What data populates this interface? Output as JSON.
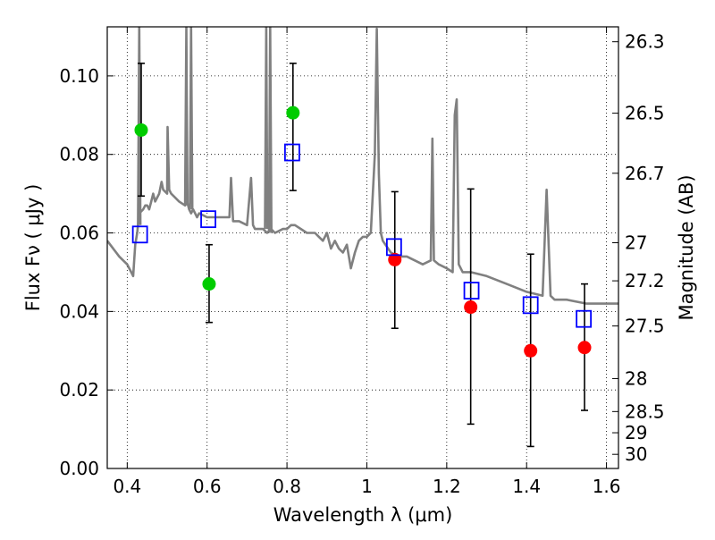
{
  "chart_data": {
    "type": "scatter",
    "xlabel": "Wavelength  λ (μm)",
    "ylabel": "Flux  Fν  ( μJy )",
    "ylabel_right": "Magnitude (AB)",
    "xlim": [
      0.35,
      1.63
    ],
    "ylim": [
      0.0,
      0.1125
    ],
    "grid": true,
    "x_ticks": [
      {
        "value": 0.4,
        "label": "0.4"
      },
      {
        "value": 0.6,
        "label": "0.6"
      },
      {
        "value": 0.8,
        "label": "0.8"
      },
      {
        "value": 1.0,
        "label": "1"
      },
      {
        "value": 1.2,
        "label": "1.2"
      },
      {
        "value": 1.4,
        "label": "1.4"
      },
      {
        "value": 1.6,
        "label": "1.6"
      }
    ],
    "y_ticks": [
      {
        "value": 0.0,
        "label": "0.00"
      },
      {
        "value": 0.02,
        "label": "0.02"
      },
      {
        "value": 0.04,
        "label": "0.04"
      },
      {
        "value": 0.06,
        "label": "0.06"
      },
      {
        "value": 0.08,
        "label": "0.08"
      },
      {
        "value": 0.1,
        "label": "0.10"
      }
    ],
    "right_ticks": [
      {
        "flux": 0.1087,
        "label": "26.3"
      },
      {
        "flux": 0.0905,
        "label": "26.5"
      },
      {
        "flux": 0.0752,
        "label": "26.7"
      },
      {
        "flux": 0.0575,
        "label": "27"
      },
      {
        "flux": 0.0478,
        "label": "27.2"
      },
      {
        "flux": 0.0363,
        "label": "27.5"
      },
      {
        "flux": 0.0229,
        "label": "28"
      },
      {
        "flux": 0.0145,
        "label": "28.5"
      },
      {
        "flux": 0.0091,
        "label": "29"
      },
      {
        "flux": 0.0036,
        "label": "30"
      }
    ],
    "series": [
      {
        "name": "model SED",
        "style": "line",
        "color": "#808080",
        "x": [
          0.35,
          0.38,
          0.4,
          0.41,
          0.415,
          0.42,
          0.425,
          0.43,
          0.44,
          0.445,
          0.45,
          0.455,
          0.46,
          0.465,
          0.47,
          0.48,
          0.486,
          0.49,
          0.5,
          0.501,
          0.505,
          0.51,
          0.53,
          0.545,
          0.55,
          0.555,
          0.56,
          0.565,
          0.57,
          0.575,
          0.58,
          0.6,
          0.63,
          0.656,
          0.66,
          0.665,
          0.68,
          0.7,
          0.71,
          0.715,
          0.72,
          0.74,
          0.75,
          0.76,
          0.77,
          0.79,
          0.8,
          0.81,
          0.82,
          0.85,
          0.87,
          0.88,
          0.89,
          0.9,
          0.91,
          0.92,
          0.93,
          0.94,
          0.95,
          0.96,
          0.97,
          0.98,
          0.99,
          1.0,
          1.01,
          1.02,
          1.025,
          1.03,
          1.035,
          1.04,
          1.06,
          1.08,
          1.1,
          1.12,
          1.14,
          1.16,
          1.164,
          1.168,
          1.18,
          1.2,
          1.215,
          1.22,
          1.225,
          1.23,
          1.24,
          1.26,
          1.3,
          1.35,
          1.4,
          1.44,
          1.45,
          1.46,
          1.47,
          1.5,
          1.55,
          1.6,
          1.63
        ],
        "y": [
          0.058,
          0.054,
          0.052,
          0.05,
          0.049,
          0.057,
          0.06,
          0.065,
          0.066,
          0.067,
          0.067,
          0.066,
          0.068,
          0.07,
          0.068,
          0.07,
          0.073,
          0.071,
          0.07,
          0.087,
          0.071,
          0.07,
          0.068,
          0.067,
          0.068,
          0.066,
          0.065,
          0.066,
          0.065,
          0.064,
          0.065,
          0.064,
          0.064,
          0.064,
          0.074,
          0.063,
          0.063,
          0.062,
          0.074,
          0.062,
          0.061,
          0.061,
          0.06,
          0.061,
          0.06,
          0.061,
          0.061,
          0.062,
          0.062,
          0.06,
          0.06,
          0.059,
          0.058,
          0.06,
          0.056,
          0.058,
          0.056,
          0.055,
          0.057,
          0.051,
          0.055,
          0.058,
          0.059,
          0.059,
          0.06,
          0.08,
          0.112,
          0.075,
          0.06,
          0.058,
          0.055,
          0.054,
          0.054,
          0.053,
          0.052,
          0.053,
          0.084,
          0.053,
          0.052,
          0.051,
          0.05,
          0.09,
          0.094,
          0.052,
          0.05,
          0.05,
          0.049,
          0.047,
          0.045,
          0.044,
          0.071,
          0.044,
          0.043,
          0.043,
          0.042,
          0.042,
          0.042
        ]
      },
      {
        "name": "spike 0.430",
        "style": "line",
        "color": "#808080",
        "x": [
          0.427,
          0.43,
          0.433
        ],
        "y": [
          0.062,
          0.1125,
          0.062
        ]
      },
      {
        "name": "spike 0.548",
        "style": "line",
        "color": "#808080",
        "x": [
          0.545,
          0.548,
          0.551
        ],
        "y": [
          0.067,
          0.1125,
          0.067
        ]
      },
      {
        "name": "spike 0.560",
        "style": "line",
        "color": "#808080",
        "x": [
          0.557,
          0.56,
          0.563
        ],
        "y": [
          0.066,
          0.1125,
          0.066
        ]
      },
      {
        "name": "spike 0.748",
        "style": "line",
        "color": "#808080",
        "x": [
          0.745,
          0.748,
          0.751
        ],
        "y": [
          0.061,
          0.1125,
          0.061
        ]
      },
      {
        "name": "spike 0.758",
        "style": "line",
        "color": "#808080",
        "x": [
          0.755,
          0.758,
          0.761
        ],
        "y": [
          0.06,
          0.1125,
          0.06
        ]
      },
      {
        "name": "photometry (green)",
        "style": "points",
        "marker": "circle",
        "color": "#00cc00",
        "x": [
          0.435,
          0.605,
          0.815
        ],
        "y": [
          0.0862,
          0.047,
          0.0906
        ],
        "yerr_low": [
          0.0694,
          0.0372,
          0.0708
        ],
        "yerr_high": [
          0.1032,
          0.057,
          0.1032
        ]
      },
      {
        "name": "photometry (red)",
        "style": "points",
        "marker": "circle",
        "color": "#ff0000",
        "x": [
          1.07,
          1.26,
          1.41,
          1.545
        ],
        "y": [
          0.0532,
          0.0411,
          0.03,
          0.0308
        ],
        "yerr_low": [
          0.0357,
          0.0113,
          0.0056,
          0.0148
        ],
        "yerr_high": [
          0.0705,
          0.0712,
          0.0546,
          0.047
        ]
      },
      {
        "name": "model photometry",
        "style": "points",
        "marker": "square-open",
        "color": "#0000ff",
        "x": [
          0.432,
          0.603,
          0.813,
          1.068,
          1.262,
          1.41,
          1.543
        ],
        "y": [
          0.0596,
          0.0635,
          0.0805,
          0.0564,
          0.0453,
          0.0416,
          0.0381
        ]
      }
    ]
  }
}
